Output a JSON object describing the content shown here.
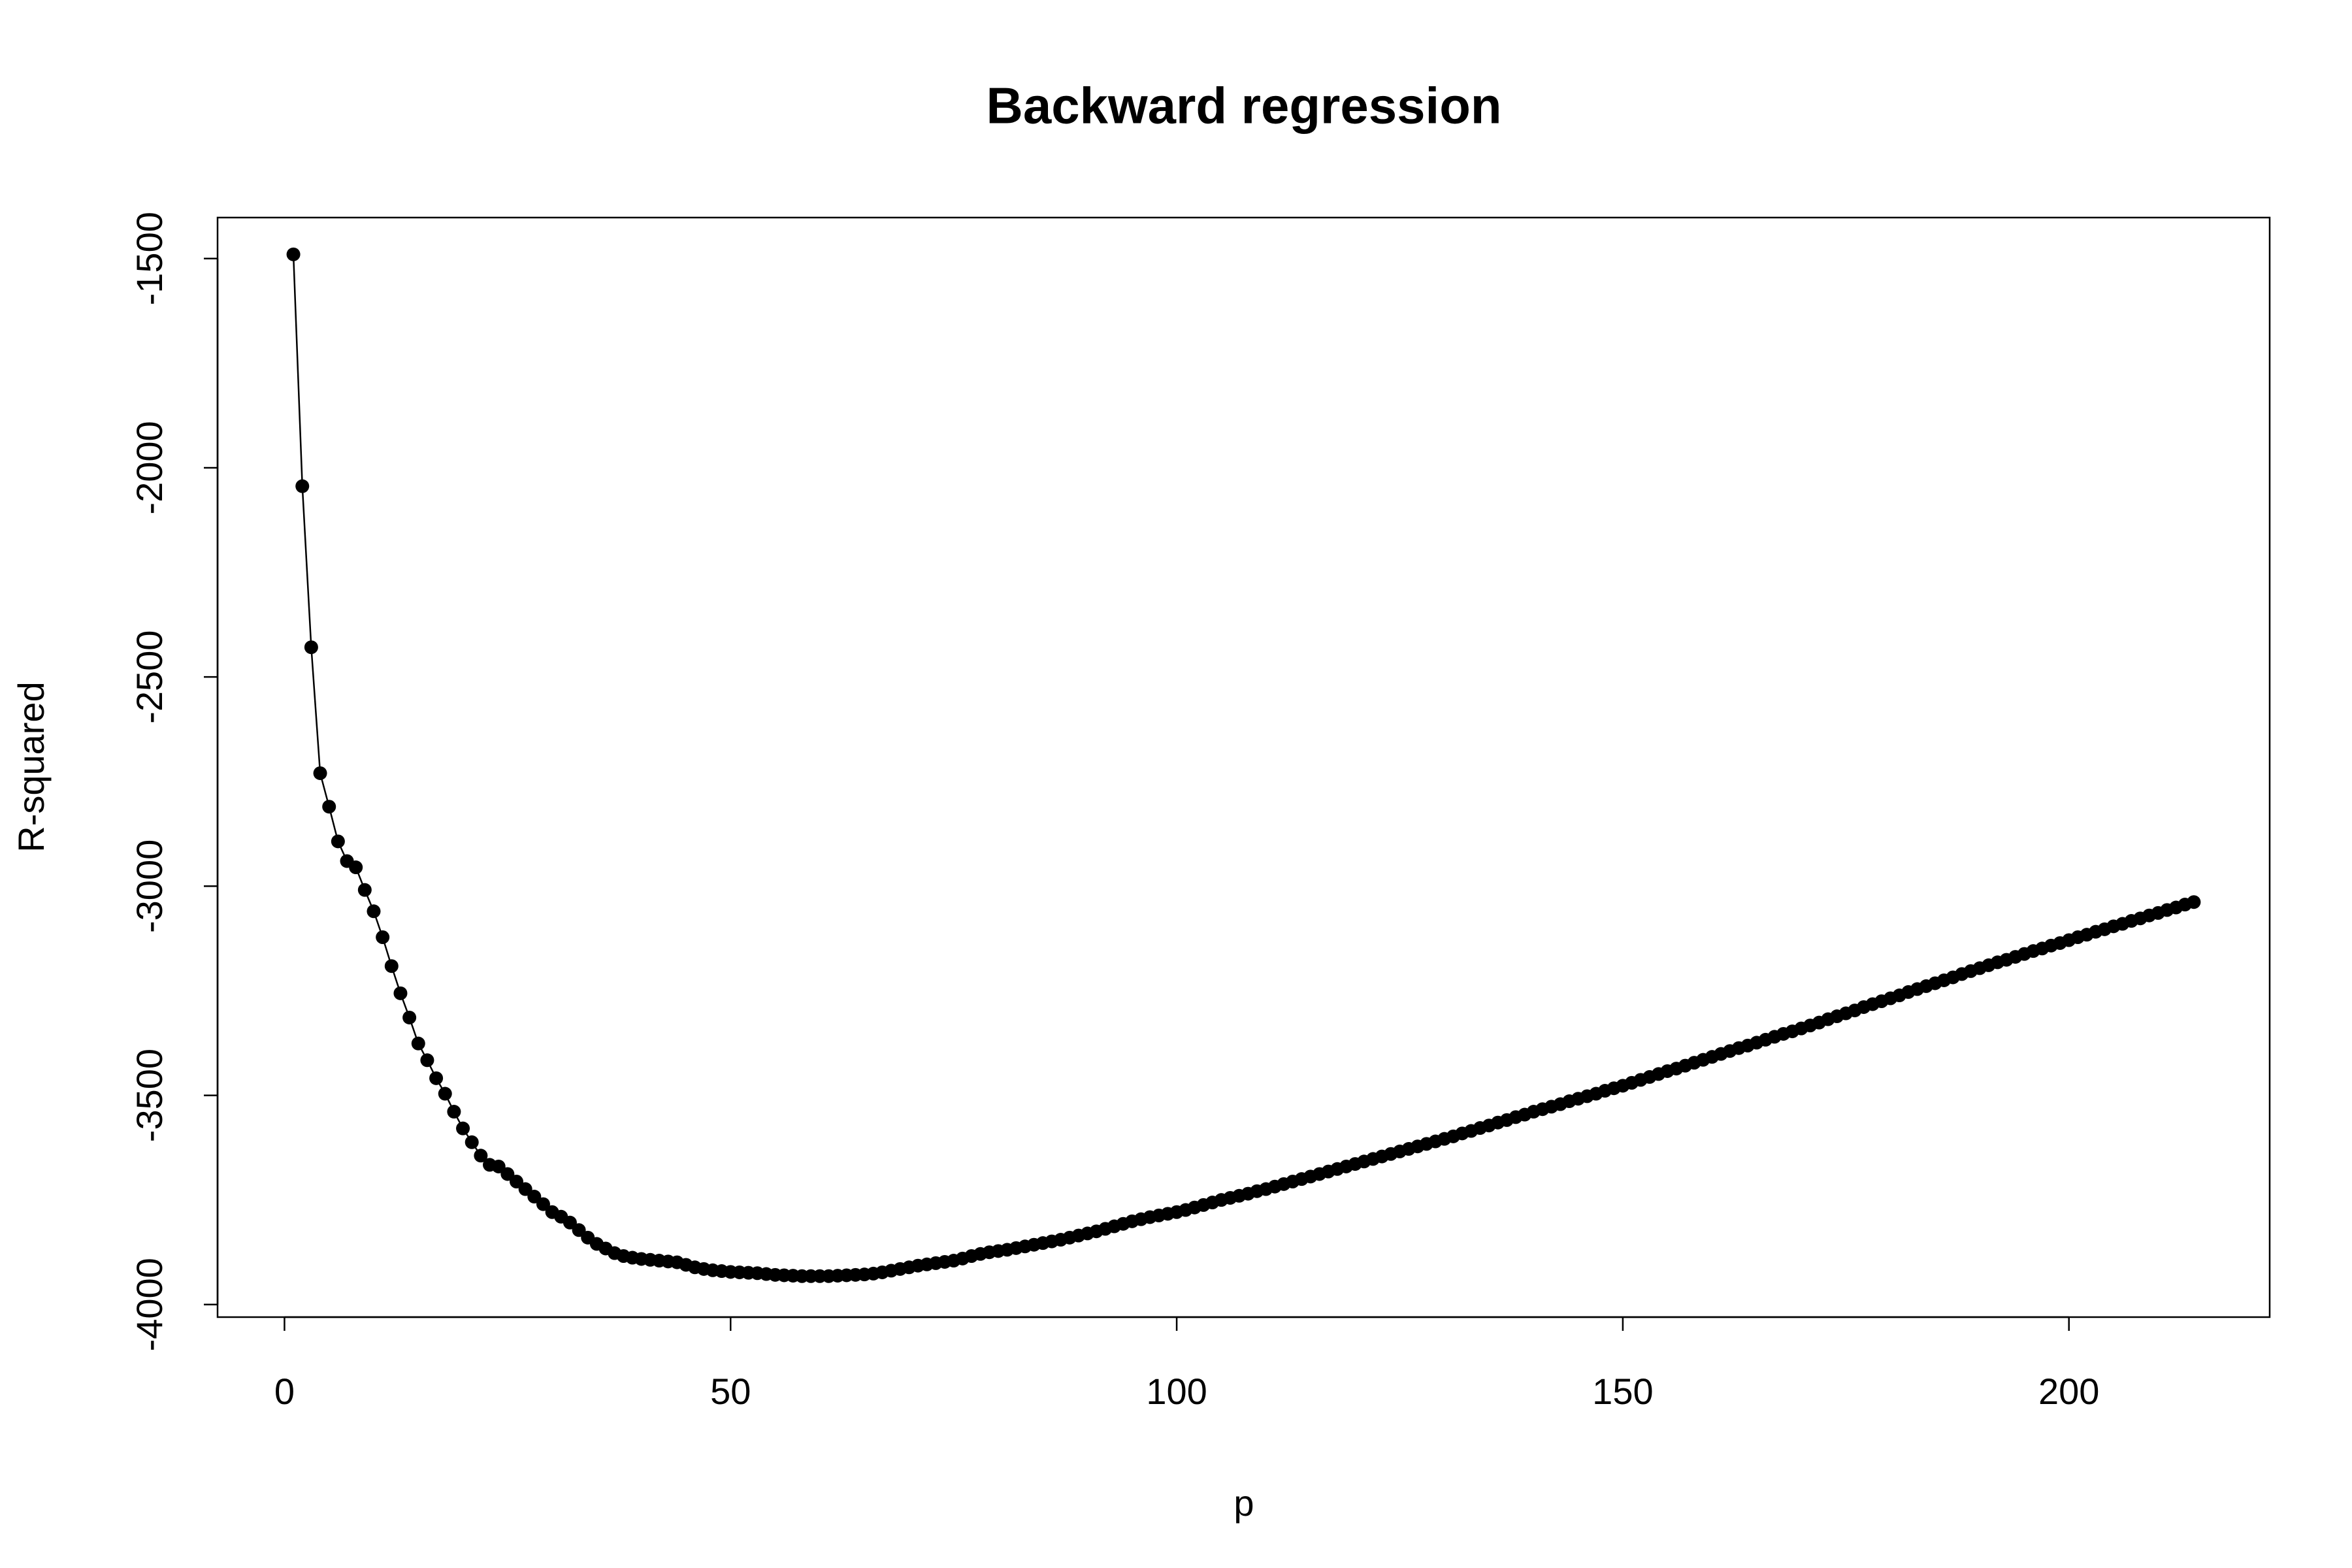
{
  "chart_data": {
    "type": "line",
    "title": "Backward regression",
    "x_label": "p",
    "y_label": "R-squared",
    "color": "#000000",
    "markers": true,
    "x": [
      1,
      2,
      3,
      4,
      5,
      6,
      7,
      8,
      9,
      10,
      11,
      12,
      13,
      14,
      15,
      16,
      17,
      18,
      19,
      20,
      21,
      22,
      23,
      24,
      25,
      26,
      27,
      28,
      29,
      30,
      31,
      32,
      33,
      34,
      35,
      36,
      37,
      38,
      39,
      40,
      41,
      42,
      43,
      44,
      45,
      46,
      47,
      48,
      49,
      50,
      51,
      52,
      53,
      54,
      55,
      56,
      57,
      58,
      59,
      60,
      61,
      62,
      63,
      64,
      65,
      66,
      67,
      68,
      69,
      70,
      71,
      72,
      73,
      74,
      75,
      76,
      77,
      78,
      79,
      80,
      81,
      82,
      83,
      84,
      85,
      86,
      87,
      88,
      89,
      90,
      91,
      92,
      93,
      94,
      95,
      96,
      97,
      98,
      99,
      100,
      101,
      102,
      103,
      104,
      105,
      106,
      107,
      108,
      109,
      110,
      111,
      112,
      113,
      114,
      115,
      116,
      117,
      118,
      119,
      120,
      121,
      122,
      123,
      124,
      125,
      126,
      127,
      128,
      129,
      130,
      131,
      132,
      133,
      134,
      135,
      136,
      137,
      138,
      139,
      140,
      141,
      142,
      143,
      144,
      145,
      146,
      147,
      148,
      149,
      150,
      151,
      152,
      153,
      154,
      155,
      156,
      157,
      158,
      159,
      160,
      161,
      162,
      163,
      164,
      165,
      166,
      167,
      168,
      169,
      170,
      171,
      172,
      173,
      174,
      175,
      176,
      177,
      178,
      179,
      180,
      181,
      182,
      183,
      184,
      185,
      186,
      187,
      188,
      189,
      190,
      191,
      192,
      193,
      194,
      195,
      196,
      197,
      198,
      199,
      200,
      201,
      202,
      203,
      204,
      205,
      206,
      207,
      208,
      209,
      210,
      211,
      212,
      213,
      214
    ],
    "values": [
      -1490,
      -2044,
      -2429,
      -2730,
      -2810,
      -2893,
      -2940,
      -2955,
      -3009,
      -3060,
      -3122,
      -3191,
      -3256,
      -3314,
      -3376,
      -3416,
      -3459,
      -3496,
      -3539,
      -3579,
      -3612,
      -3644,
      -3666,
      -3670,
      -3688,
      -3706,
      -3724,
      -3742,
      -3760,
      -3779,
      -3790,
      -3804,
      -3822,
      -3840,
      -3855,
      -3866,
      -3877,
      -3884,
      -3888,
      -3891,
      -3893,
      -3895,
      -3897,
      -3899,
      -3905,
      -3911,
      -3915,
      -3918,
      -3920,
      -3922,
      -3923,
      -3924,
      -3925,
      -3927,
      -3929,
      -3930,
      -3931,
      -3932,
      -3932,
      -3932,
      -3932,
      -3931,
      -3930,
      -3929,
      -3928,
      -3926,
      -3923,
      -3919,
      -3915,
      -3911,
      -3907,
      -3904,
      -3901,
      -3898,
      -3895,
      -3890,
      -3884,
      -3879,
      -3875,
      -3872,
      -3869,
      -3865,
      -3861,
      -3857,
      -3853,
      -3849,
      -3845,
      -3840,
      -3835,
      -3830,
      -3825,
      -3819,
      -3813,
      -3807,
      -3801,
      -3796,
      -3791,
      -3787,
      -3783,
      -3779,
      -3774,
      -3768,
      -3762,
      -3756,
      -3750,
      -3745,
      -3740,
      -3735,
      -3729,
      -3724,
      -3718,
      -3712,
      -3706,
      -3700,
      -3694,
      -3688,
      -3682,
      -3676,
      -3670,
      -3664,
      -3658,
      -3652,
      -3646,
      -3640,
      -3634,
      -3628,
      -3622,
      -3616,
      -3610,
      -3604,
      -3598,
      -3591,
      -3585,
      -3578,
      -3572,
      -3565,
      -3559,
      -3552,
      -3546,
      -3539,
      -3533,
      -3527,
      -3521,
      -3514,
      -3508,
      -3502,
      -3496,
      -3489,
      -3483,
      -3477,
      -3470,
      -3463,
      -3456,
      -3449,
      -3442,
      -3436,
      -3429,
      -3422,
      -3415,
      -3408,
      -3401,
      -3394,
      -3387,
      -3381,
      -3374,
      -3367,
      -3360,
      -3353,
      -3347,
      -3340,
      -3333,
      -3326,
      -3318,
      -3311,
      -3304,
      -3297,
      -3289,
      -3282,
      -3275,
      -3268,
      -3261,
      -3253,
      -3246,
      -3239,
      -3232,
      -3225,
      -3218,
      -3210,
      -3203,
      -3196,
      -3189,
      -3182,
      -3176,
      -3169,
      -3162,
      -3155,
      -3149,
      -3142,
      -3136,
      -3129,
      -3122,
      -3116,
      -3109,
      -3103,
      -3096,
      -3090,
      -3083,
      -3077,
      -3070,
      -3064,
      -3057,
      -3051,
      -3044,
      -3038
    ],
    "xlim": [
      -7.5,
      222.5
    ],
    "ylim": [
      -4030,
      -1402
    ],
    "xticks": [
      0,
      50,
      100,
      150,
      200
    ],
    "yticks": [
      -4000,
      -3500,
      -3000,
      -2500,
      -2000,
      -1500
    ]
  }
}
